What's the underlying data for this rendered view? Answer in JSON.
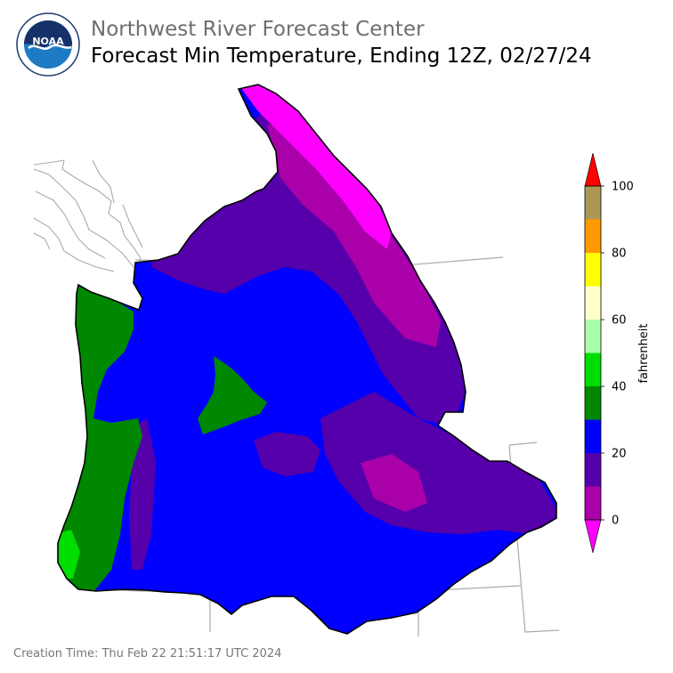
{
  "header": {
    "organization": "Northwest River Forecast Center",
    "title": "Forecast Min Temperature, Ending 12Z, 02/27/24"
  },
  "logo": {
    "text": "NOAA",
    "ring_text": "NATIONAL OCEANIC AND ATMOSPHERIC ADMINISTRATION · U.S. DEPARTMENT OF COMMERCE"
  },
  "legend": {
    "label": "fahrenheit",
    "ticks": [
      "0",
      "20",
      "40",
      "60",
      "80",
      "100"
    ],
    "bins": [
      {
        "from": 0,
        "to": 10,
        "color": "#aa00aa"
      },
      {
        "from": 10,
        "to": 20,
        "color": "#5500aa"
      },
      {
        "from": 20,
        "to": 30,
        "color": "#0000ff"
      },
      {
        "from": 30,
        "to": 40,
        "color": "#008800"
      },
      {
        "from": 40,
        "to": 50,
        "color": "#00dd00"
      },
      {
        "from": 50,
        "to": 60,
        "color": "#aaffaa"
      },
      {
        "from": 60,
        "to": 70,
        "color": "#ffffcc"
      },
      {
        "from": 70,
        "to": 80,
        "color": "#ffff00"
      },
      {
        "from": 80,
        "to": 90,
        "color": "#ff9900"
      },
      {
        "from": 90,
        "to": 100,
        "color": "#aa9955"
      }
    ],
    "under_color": "#ff00ff",
    "over_color": "#ff0000"
  },
  "map": {
    "colors": {
      "lt0": "#ff00ff",
      "t0_10": "#aa00aa",
      "t10_20": "#5500aa",
      "t20_30": "#0000ff",
      "t30_40": "#008800",
      "t40_50": "#00dd00",
      "boundary": "#aaaaaa"
    }
  },
  "footer": {
    "label": "Creation Time:",
    "value": "Thu Feb 22 21:51:17 UTC 2024"
  }
}
